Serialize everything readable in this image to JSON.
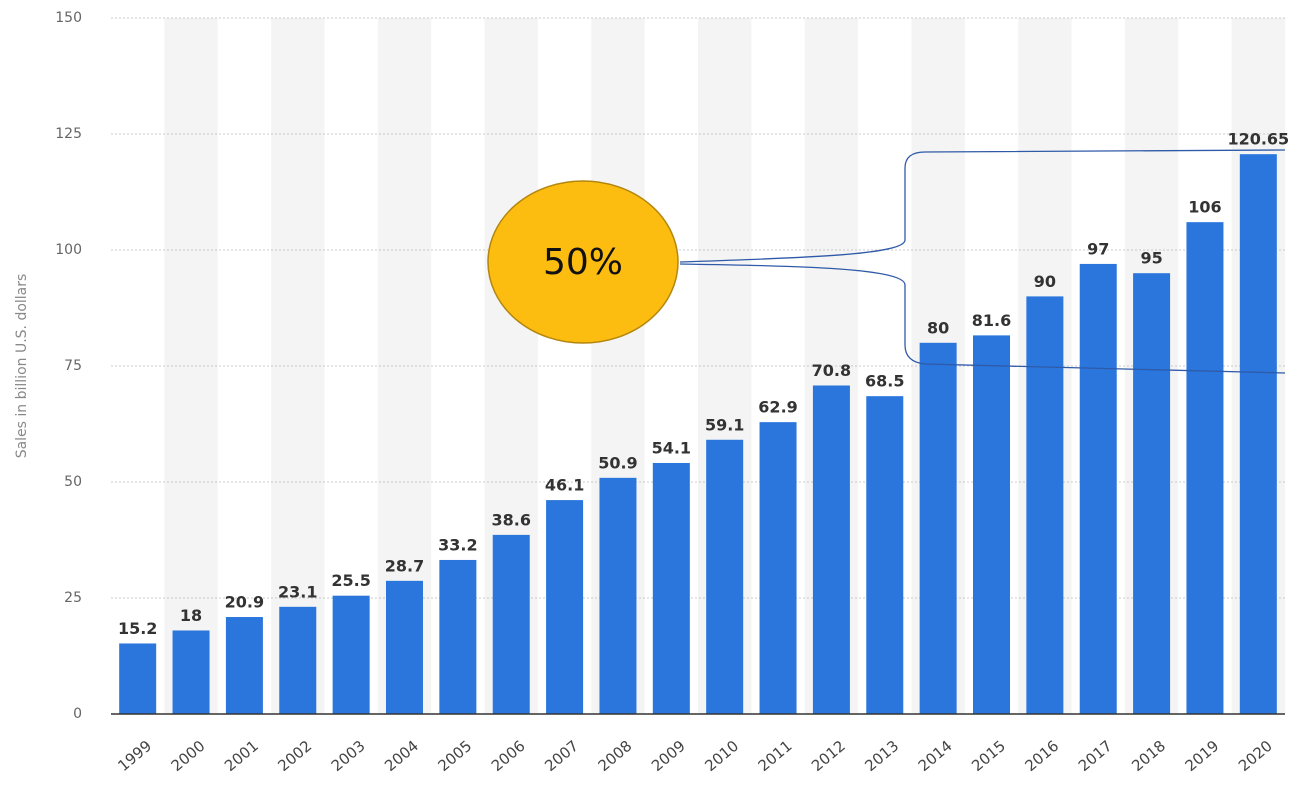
{
  "chart_data": {
    "type": "bar",
    "y_axis_label": "Sales in billion U.S. dollars",
    "categories": [
      "1999",
      "2000",
      "2001",
      "2002",
      "2003",
      "2004",
      "2005",
      "2006",
      "2007",
      "2008",
      "2009",
      "2010",
      "2011",
      "2012",
      "2013",
      "2014",
      "2015",
      "2016",
      "2017",
      "2018",
      "2019",
      "2020"
    ],
    "values": [
      15.2,
      18,
      20.9,
      23.1,
      25.5,
      28.7,
      33.2,
      38.6,
      46.1,
      50.9,
      54.1,
      59.1,
      62.9,
      70.8,
      68.5,
      80,
      81.6,
      90,
      97,
      95,
      106,
      120.65
    ],
    "color": "#2a76dd",
    "ylim": [
      0,
      150
    ],
    "yticks": [
      0,
      25,
      50,
      75,
      100,
      125,
      150
    ],
    "grid": true,
    "annotation": "50%"
  }
}
